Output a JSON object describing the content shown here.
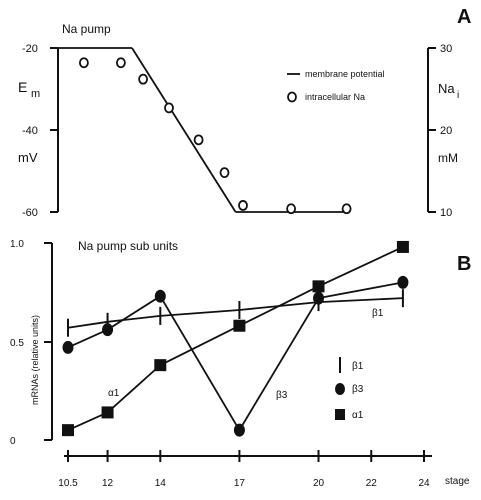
{
  "chart_data": [
    {
      "panel": "A",
      "type": "line",
      "title": "Na pump",
      "y_left": {
        "label_main": "E",
        "label_sub": "m",
        "unit": "mV",
        "ticks": [
          "-20",
          "-40",
          "-60"
        ],
        "ylim": [
          -60,
          -20
        ]
      },
      "y_right": {
        "label_main": "Na",
        "label_sub": "i",
        "unit": "mM",
        "ticks": [
          "30",
          "20",
          "10"
        ],
        "ylim": [
          10,
          30
        ]
      },
      "legend": [
        "membrane potential",
        "intracellular Na"
      ],
      "series": [
        {
          "name": "membrane potential",
          "points": [
            [
              0.0,
              -20.0
            ],
            [
              0.2,
              -20.0
            ],
            [
              0.48,
              -60.0
            ],
            [
              0.78,
              -60.0
            ]
          ]
        },
        {
          "name": "intracellular Na",
          "points": [
            [
              0.07,
              28.2
            ],
            [
              0.17,
              28.2
            ],
            [
              0.23,
              26.2
            ],
            [
              0.3,
              22.7
            ],
            [
              0.38,
              18.8
            ],
            [
              0.45,
              14.8
            ],
            [
              0.5,
              10.8
            ],
            [
              0.63,
              10.4
            ],
            [
              0.78,
              10.4
            ]
          ]
        }
      ]
    },
    {
      "panel": "B",
      "type": "line",
      "title": "Na pump sub units",
      "ylabel": "mRNAs (relative units)",
      "xlabel": "stage",
      "x_ticks": [
        "10.5",
        "12",
        "14",
        "17",
        "20",
        "22",
        "24"
      ],
      "xlim": [
        10.5,
        24
      ],
      "y_ticks": [
        "1.0",
        "0.5",
        "0"
      ],
      "ylim": [
        0,
        1
      ],
      "legend": [
        "β1",
        "β3",
        "α1"
      ],
      "series": [
        {
          "name": "β1",
          "x": [
            10.5,
            12,
            14,
            17,
            20,
            23.2
          ],
          "y": [
            0.57,
            0.6,
            0.63,
            0.66,
            0.7,
            0.72
          ]
        },
        {
          "name": "β3",
          "x": [
            10.5,
            12,
            14,
            17,
            20,
            23.2
          ],
          "y": [
            0.47,
            0.56,
            0.73,
            0.05,
            0.72,
            0.8
          ]
        },
        {
          "name": "α1",
          "x": [
            10.5,
            12,
            14,
            17,
            20,
            23.2
          ],
          "y": [
            0.05,
            0.14,
            0.38,
            0.58,
            0.78,
            0.98
          ]
        }
      ],
      "curve_labels": [
        "β1",
        "β3",
        "α1"
      ]
    }
  ],
  "panel_labels": [
    "A",
    "B"
  ]
}
